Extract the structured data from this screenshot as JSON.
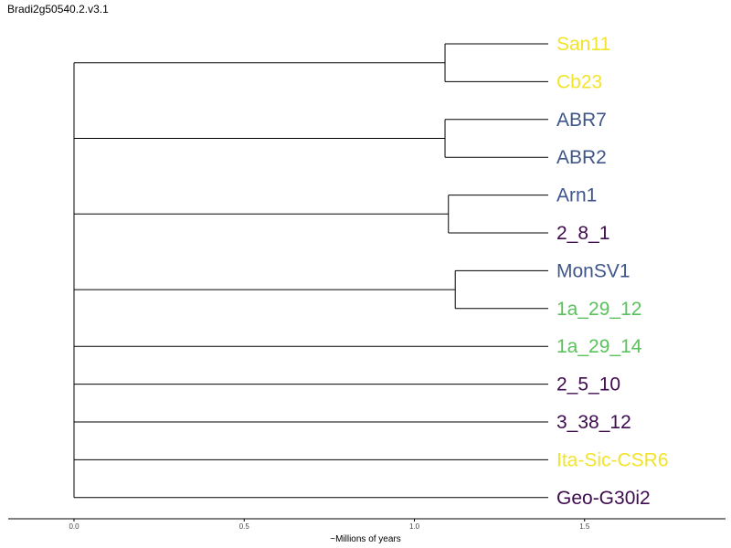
{
  "title": "Bradi2g50540.2.v3.1",
  "axis": {
    "label": "~Millions of years",
    "ticks": [
      "0.0",
      "0.5",
      "1.0",
      "1.5"
    ]
  },
  "colors": {
    "yellow": "#f2e42a",
    "blue": "#3e568a",
    "purple": "#3f0b4f",
    "green": "#5ac25b"
  },
  "leaves": [
    {
      "name": "San11",
      "color": "yellow"
    },
    {
      "name": "Cb23",
      "color": "yellow"
    },
    {
      "name": "ABR7",
      "color": "blue"
    },
    {
      "name": "ABR2",
      "color": "blue"
    },
    {
      "name": "Arn1",
      "color": "blue"
    },
    {
      "name": "2_8_1",
      "color": "purple"
    },
    {
      "name": "MonSV1",
      "color": "blue"
    },
    {
      "name": "1a_29_12",
      "color": "green"
    },
    {
      "name": "1a_29_14",
      "color": "green"
    },
    {
      "name": "2_5_10",
      "color": "purple"
    },
    {
      "name": "3_38_12",
      "color": "purple"
    },
    {
      "name": "Ita-Sic-CSR6",
      "color": "yellow"
    },
    {
      "name": "Geo-G30i2",
      "color": "purple"
    }
  ],
  "clades": [
    {
      "leaves": [
        0,
        1
      ],
      "age": 1.09
    },
    {
      "leaves": [
        2,
        3
      ],
      "age": 1.09
    },
    {
      "leaves": [
        4,
        5
      ],
      "age": 1.1
    },
    {
      "leaves": [
        6,
        7
      ],
      "age": 1.12
    }
  ]
}
